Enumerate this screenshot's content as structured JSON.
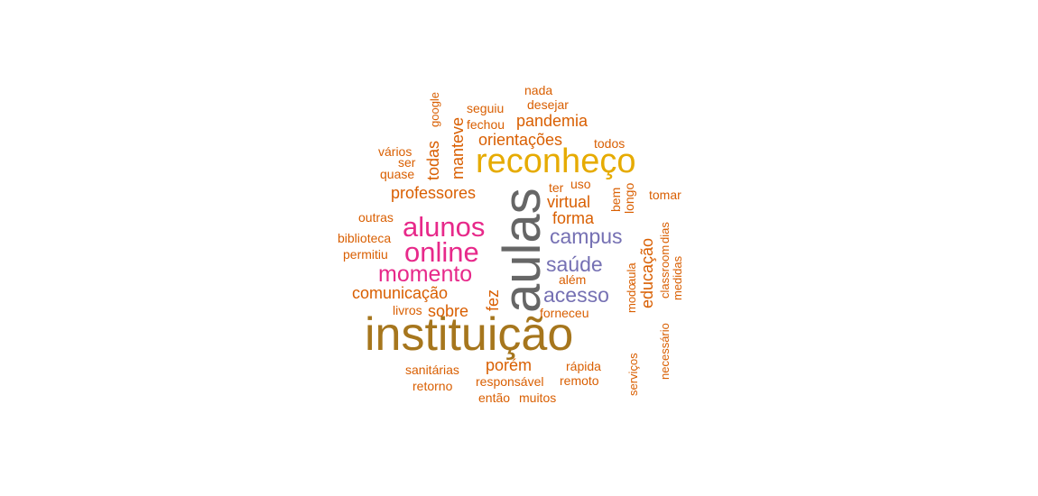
{
  "palette": {
    "orange": "#D95F02",
    "gold": "#E6AB02",
    "olive": "#A6761D",
    "magenta": "#E7298A",
    "purple": "#7570B3",
    "gray": "#666666"
  },
  "words": [
    {
      "text": "aulas",
      "color": "gray",
      "rotated": true
    },
    {
      "text": "instituição",
      "color": "olive",
      "rotated": false
    },
    {
      "text": "reconheço",
      "color": "gold",
      "rotated": false
    },
    {
      "text": "alunos",
      "color": "magenta",
      "rotated": false
    },
    {
      "text": "online",
      "color": "magenta",
      "rotated": false
    },
    {
      "text": "momento",
      "color": "magenta",
      "rotated": false
    },
    {
      "text": "campus",
      "color": "purple",
      "rotated": false
    },
    {
      "text": "saúde",
      "color": "purple",
      "rotated": false
    },
    {
      "text": "acesso",
      "color": "purple",
      "rotated": false
    },
    {
      "text": "professores",
      "color": "orange",
      "rotated": false
    },
    {
      "text": "pandemia",
      "color": "orange",
      "rotated": false
    },
    {
      "text": "orientações",
      "color": "orange",
      "rotated": false
    },
    {
      "text": "virtual",
      "color": "orange",
      "rotated": false
    },
    {
      "text": "forma",
      "color": "orange",
      "rotated": false
    },
    {
      "text": "comunicação",
      "color": "orange",
      "rotated": false
    },
    {
      "text": "sobre",
      "color": "orange",
      "rotated": false
    },
    {
      "text": "porém",
      "color": "orange",
      "rotated": false
    },
    {
      "text": "manteve",
      "color": "orange",
      "rotated": true
    },
    {
      "text": "todas",
      "color": "orange",
      "rotated": true
    },
    {
      "text": "educação",
      "color": "orange",
      "rotated": true
    },
    {
      "text": "fez",
      "color": "orange",
      "rotated": true
    },
    {
      "text": "google",
      "color": "orange",
      "rotated": true
    },
    {
      "text": "nada",
      "color": "orange",
      "rotated": false
    },
    {
      "text": "desejar",
      "color": "orange",
      "rotated": false
    },
    {
      "text": "seguiu",
      "color": "orange",
      "rotated": false
    },
    {
      "text": "fechou",
      "color": "orange",
      "rotated": false
    },
    {
      "text": "todos",
      "color": "orange",
      "rotated": false
    },
    {
      "text": "vários",
      "color": "orange",
      "rotated": false
    },
    {
      "text": "ser",
      "color": "orange",
      "rotated": false
    },
    {
      "text": "quase",
      "color": "orange",
      "rotated": false
    },
    {
      "text": "ter",
      "color": "orange",
      "rotated": false
    },
    {
      "text": "uso",
      "color": "orange",
      "rotated": false
    },
    {
      "text": "bem",
      "color": "orange",
      "rotated": true
    },
    {
      "text": "longo",
      "color": "orange",
      "rotated": true
    },
    {
      "text": "tomar",
      "color": "orange",
      "rotated": false
    },
    {
      "text": "outras",
      "color": "orange",
      "rotated": false
    },
    {
      "text": "biblioteca",
      "color": "orange",
      "rotated": false
    },
    {
      "text": "permitiu",
      "color": "orange",
      "rotated": false
    },
    {
      "text": "livros",
      "color": "orange",
      "rotated": false
    },
    {
      "text": "além",
      "color": "orange",
      "rotated": false
    },
    {
      "text": "forneceu",
      "color": "orange",
      "rotated": false
    },
    {
      "text": "modo",
      "color": "orange",
      "rotated": true
    },
    {
      "text": "aula",
      "color": "orange",
      "rotated": true
    },
    {
      "text": "classroom",
      "color": "orange",
      "rotated": true
    },
    {
      "text": "dias",
      "color": "orange",
      "rotated": true
    },
    {
      "text": "medidas",
      "color": "orange",
      "rotated": true
    },
    {
      "text": "necessário",
      "color": "orange",
      "rotated": true
    },
    {
      "text": "serviços",
      "color": "orange",
      "rotated": true
    },
    {
      "text": "sanitárias",
      "color": "orange",
      "rotated": false
    },
    {
      "text": "retorno",
      "color": "orange",
      "rotated": false
    },
    {
      "text": "responsável",
      "color": "orange",
      "rotated": false
    },
    {
      "text": "rápida",
      "color": "orange",
      "rotated": false
    },
    {
      "text": "remoto",
      "color": "orange",
      "rotated": false
    },
    {
      "text": "então",
      "color": "orange",
      "rotated": false
    },
    {
      "text": "muitos",
      "color": "orange",
      "rotated": false
    }
  ]
}
